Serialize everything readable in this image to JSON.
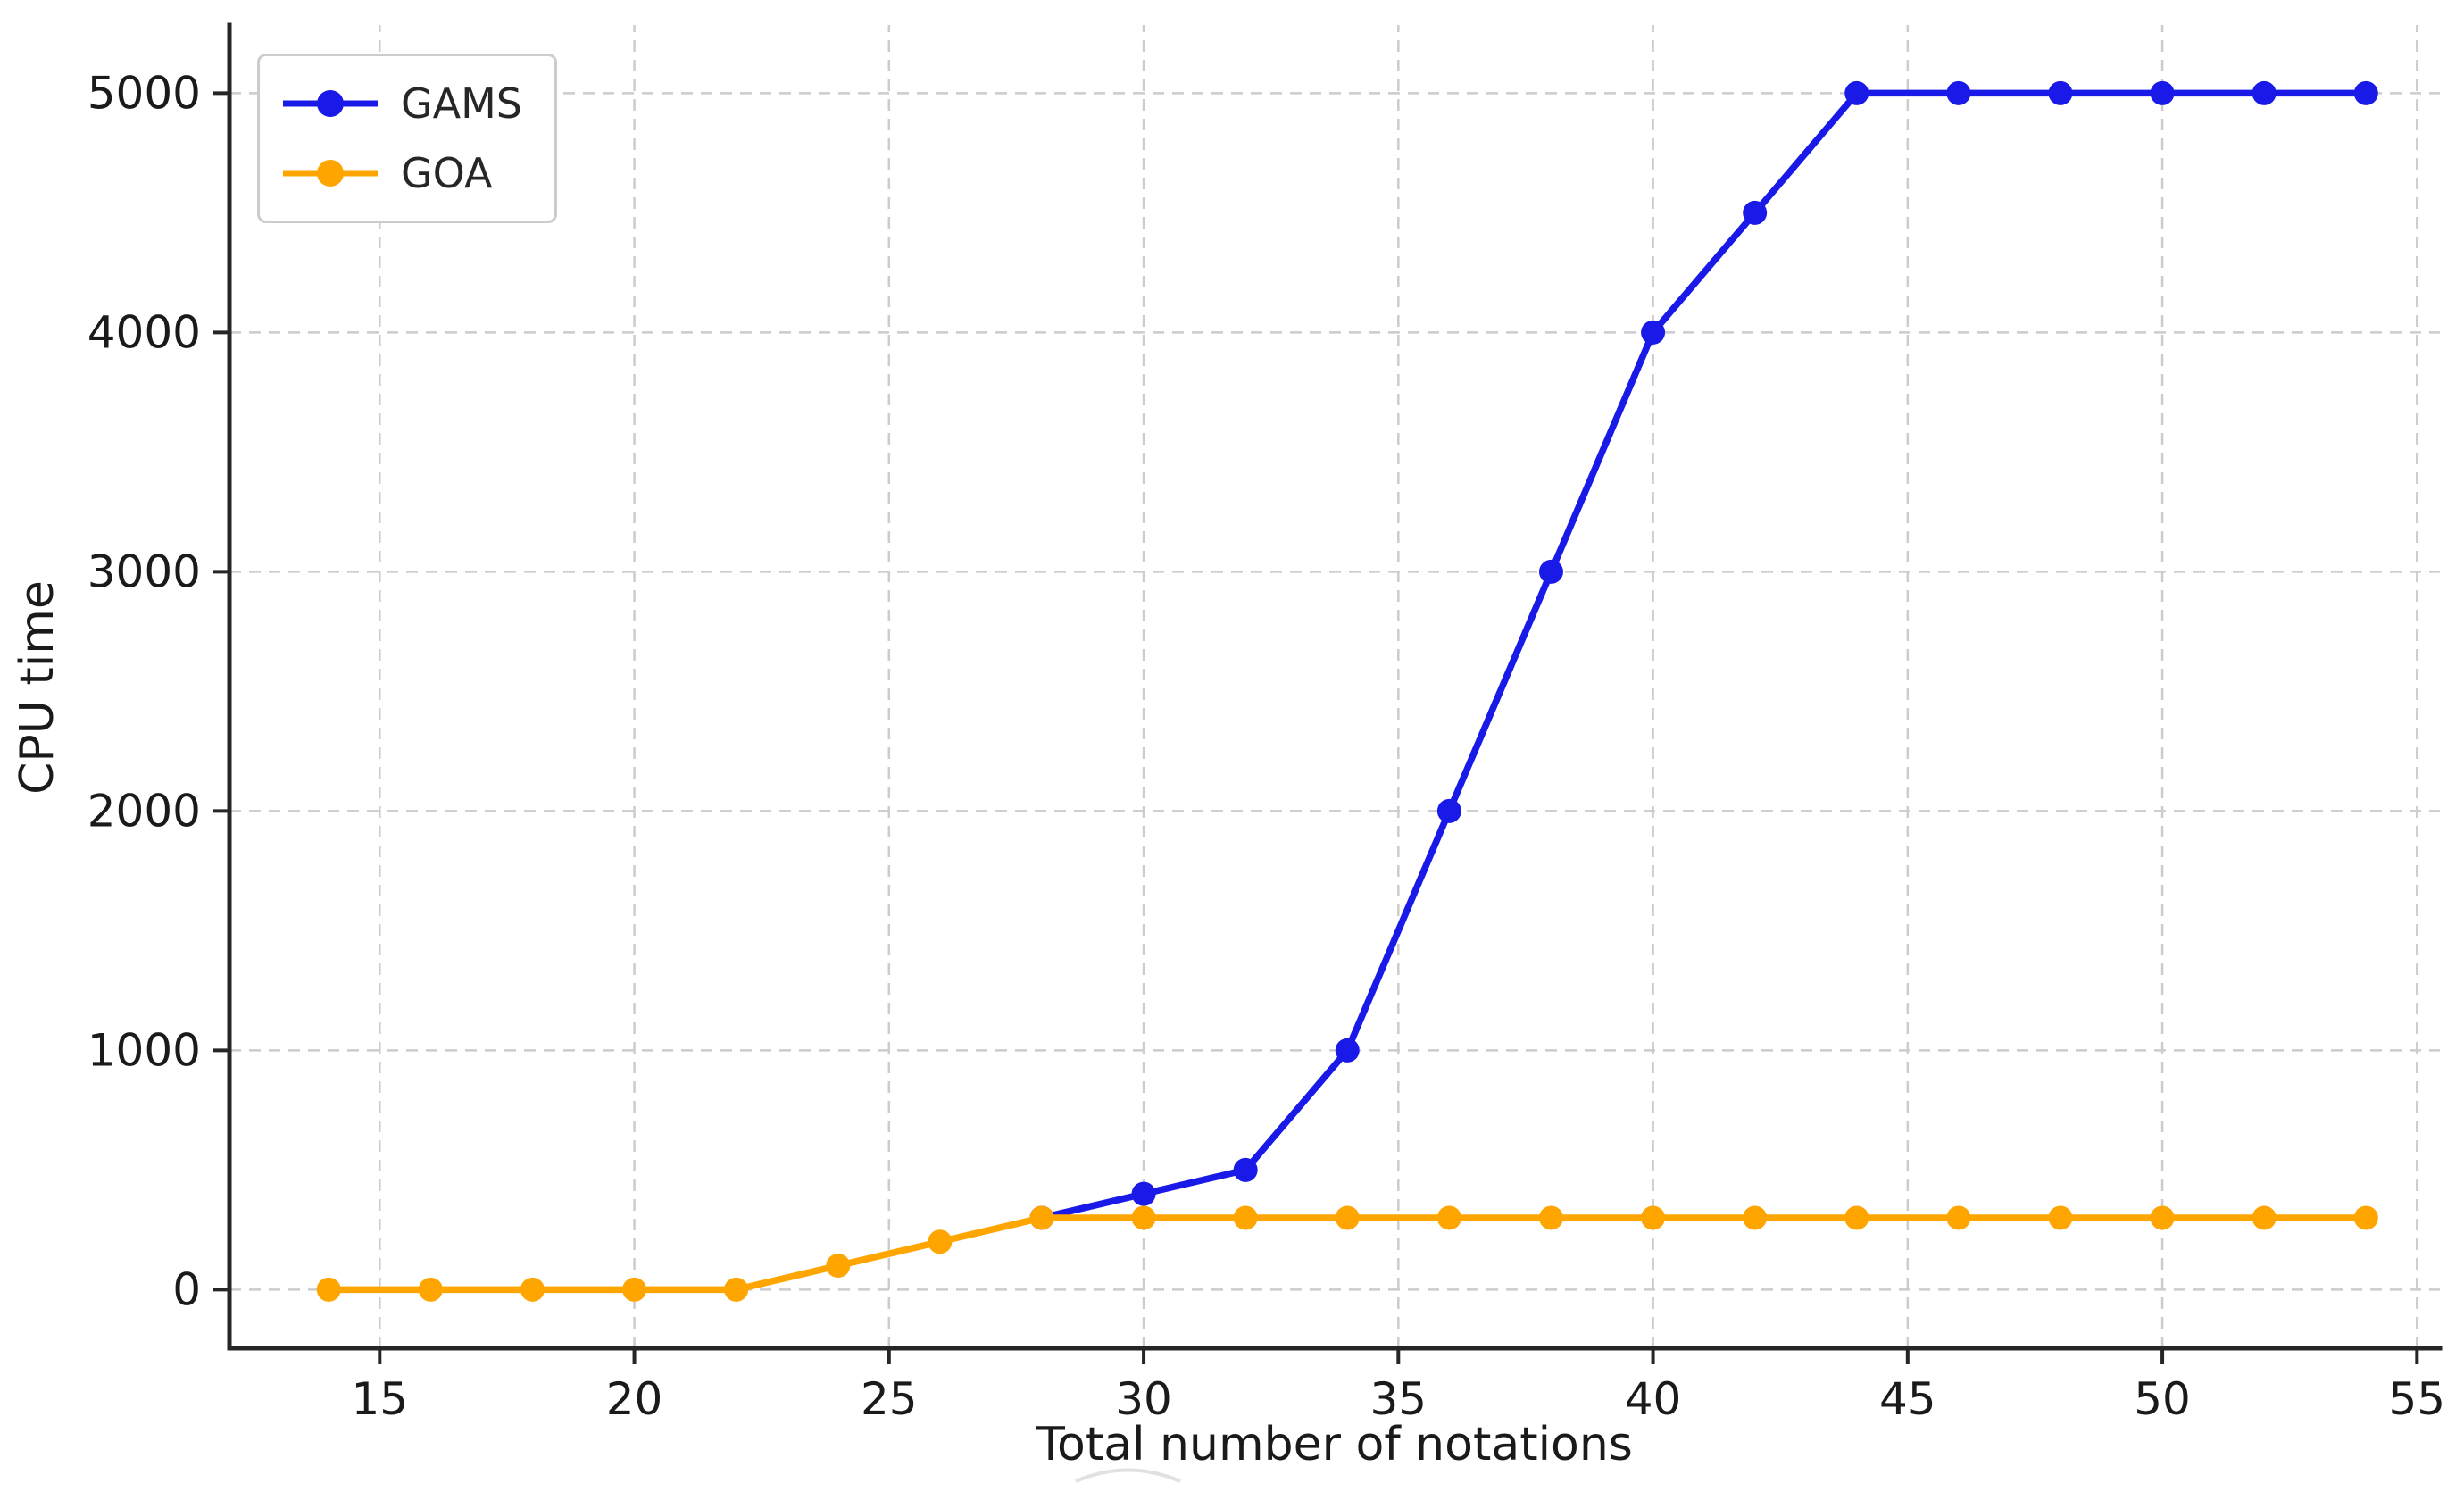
{
  "chart_data": {
    "type": "line",
    "title": "",
    "xlabel": "Total number of notations",
    "ylabel": "CPU time",
    "x_ticks": [
      15,
      20,
      25,
      30,
      35,
      40,
      45,
      50,
      55
    ],
    "x_tick_labels": [
      "15",
      "20",
      "25",
      "30",
      "35",
      "40",
      "45",
      "50",
      "55"
    ],
    "y_ticks": [
      0,
      1000,
      2000,
      3000,
      4000,
      5000
    ],
    "y_tick_labels": [
      "0",
      "1000",
      "2000",
      "3000",
      "4000",
      "5000"
    ],
    "xlim": [
      12.05,
      55.45
    ],
    "ylim": [
      -245,
      5285
    ],
    "grid": true,
    "grid_color": "#cccccc",
    "axis_color": "#262626",
    "legend_position": "upper-left",
    "series": [
      {
        "name": "GAMS",
        "color": "#1a1ae8",
        "x": [
          28,
          30,
          32,
          34,
          36,
          38,
          40,
          42,
          44,
          46,
          48,
          50,
          52,
          54
        ],
        "y": [
          300,
          400,
          500,
          1000,
          2000,
          3000,
          4000,
          4500,
          5000,
          5000,
          5000,
          5000,
          5000,
          5000
        ]
      },
      {
        "name": "GOA",
        "color": "#ffa500",
        "x": [
          14,
          16,
          18,
          20,
          22,
          24,
          26,
          28,
          30,
          32,
          34,
          36,
          38,
          40,
          42,
          44,
          46,
          48,
          50,
          52,
          54
        ],
        "y": [
          0,
          0,
          0,
          0,
          0,
          100,
          200,
          300,
          300,
          300,
          300,
          300,
          300,
          300,
          300,
          300,
          300,
          300,
          300,
          300,
          300
        ]
      }
    ]
  }
}
